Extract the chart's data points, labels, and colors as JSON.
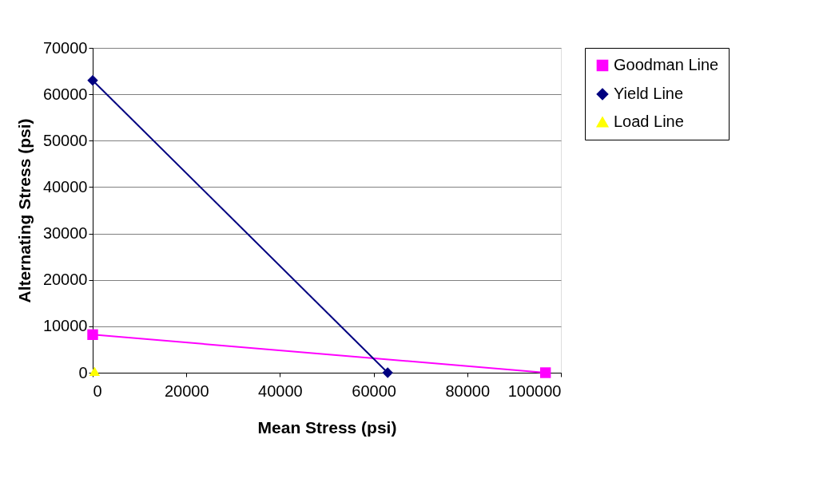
{
  "chart_data": {
    "type": "line",
    "xlabel": "Mean Stress (psi)",
    "ylabel": "Alternating Stress (psi)",
    "xlim": [
      0,
      100000
    ],
    "xticks": [
      0,
      20000,
      40000,
      60000,
      80000,
      100000
    ],
    "ylim": [
      0,
      70000
    ],
    "yticks": [
      0,
      10000,
      20000,
      30000,
      40000,
      50000,
      60000,
      70000
    ],
    "grid": "y",
    "legend": "right",
    "series": [
      {
        "name": "Goodman Line",
        "color": "#ff00ff",
        "marker": "square",
        "x": [
          0,
          96700
        ],
        "values": [
          8200,
          0
        ]
      },
      {
        "name": "Yield Line",
        "color": "#000080",
        "marker": "diamond",
        "x": [
          0,
          63000
        ],
        "values": [
          63000,
          0
        ]
      },
      {
        "name": "Load Line",
        "color": "#ffff00",
        "marker": "triangle",
        "x": [
          400
        ],
        "values": [
          300
        ]
      }
    ]
  }
}
